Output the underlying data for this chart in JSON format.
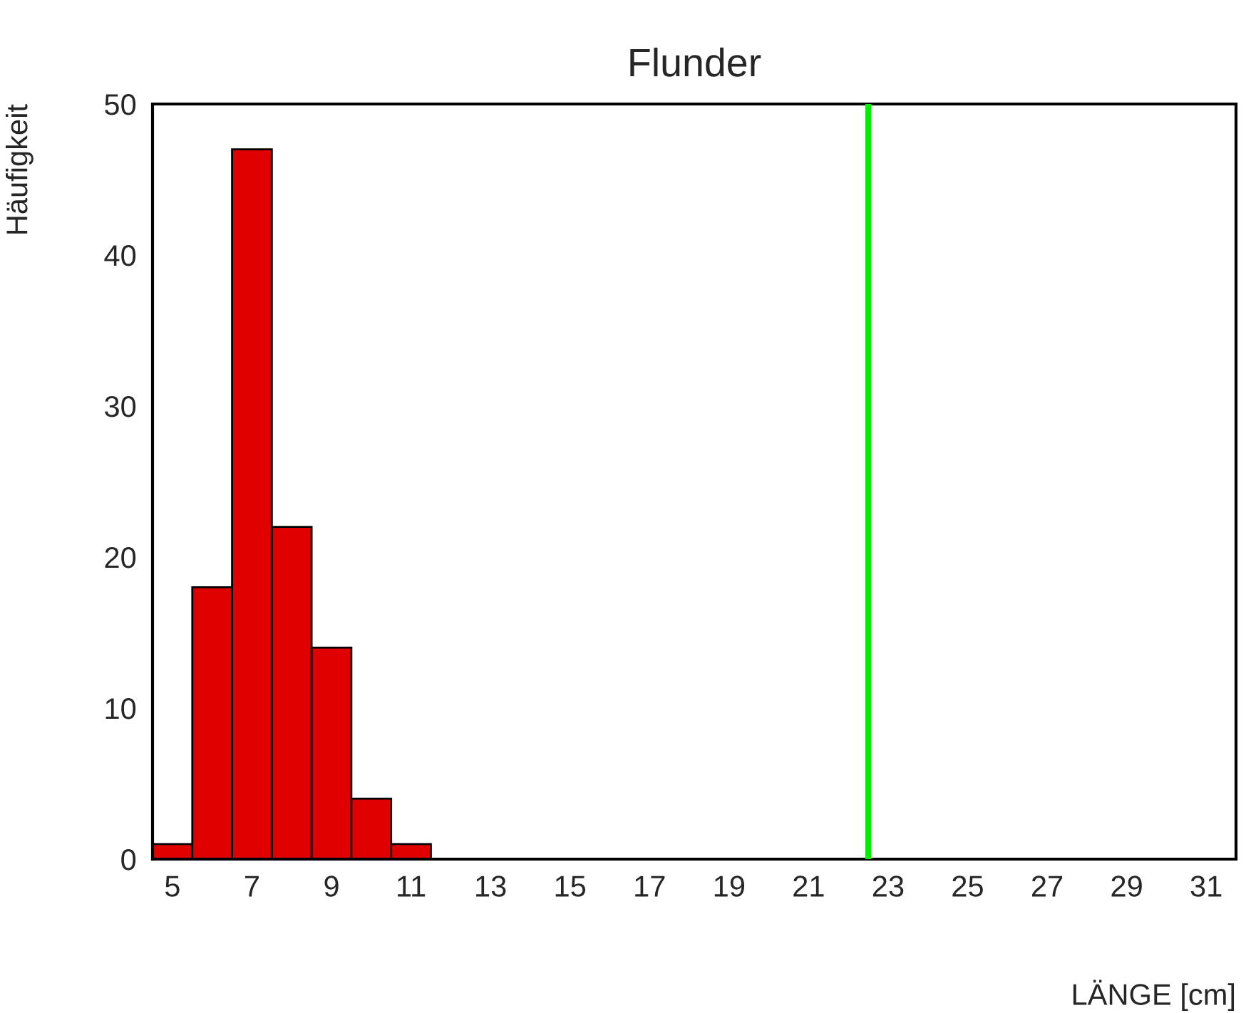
{
  "chart_data": {
    "type": "histogram",
    "title": "Flunder",
    "xlabel": "LÄNGE [cm]",
    "ylabel": "Häufigkeit",
    "bins": [
      4.5,
      5.5,
      6.5,
      7.5,
      8.5,
      9.5,
      10.5,
      11.5
    ],
    "values": [
      1,
      18,
      47,
      22,
      14,
      4,
      1
    ],
    "color": "#e00000",
    "xlim": [
      4.5,
      31.75
    ],
    "xticks": [
      5,
      7,
      9,
      11,
      13,
      15,
      17,
      19,
      21,
      23,
      25,
      27,
      29,
      31
    ],
    "ylim": [
      0,
      50
    ],
    "yticks": [
      0,
      10,
      20,
      30,
      40,
      50
    ],
    "ref_lines": [
      {
        "axis": "x",
        "value": 22.5,
        "color": "#00ee00"
      }
    ],
    "grid": false
  }
}
